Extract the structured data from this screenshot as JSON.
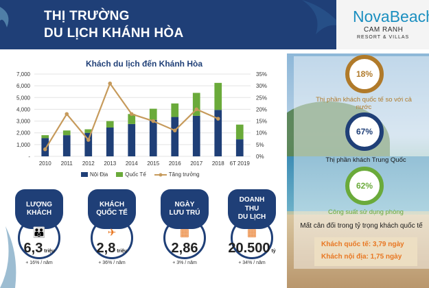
{
  "header": {
    "title_line1": "THỊ TRƯỜNG",
    "title_line2": "DU LỊCH KHÁNH HÒA",
    "logo_main": "NovaBeach",
    "logo_sub1": "CAM RANH",
    "logo_sub2": "RESORT & VILLAS"
  },
  "chart_data": {
    "type": "bar",
    "title": "Khách du lịch đến Khánh Hòa",
    "categories": [
      "2010",
      "2011",
      "2012",
      "2013",
      "2014",
      "2015",
      "2016",
      "2017",
      "2018",
      "6T 2019"
    ],
    "stacked": true,
    "series": [
      {
        "name": "Nội Địa",
        "type": "bar",
        "axis": "left",
        "color": "#1f3f77",
        "values": [
          1550,
          1800,
          2000,
          2450,
          2750,
          3100,
          3350,
          3450,
          3950,
          1450
        ]
      },
      {
        "name": "Quốc Tế",
        "type": "bar",
        "axis": "left",
        "color": "#6aaa3a",
        "values": [
          250,
          400,
          300,
          550,
          850,
          950,
          1150,
          1950,
          2300,
          1250
        ]
      },
      {
        "name": "Tăng trưởng",
        "type": "line",
        "axis": "right",
        "color": "#c69a5b",
        "values": [
          3,
          18,
          7,
          31,
          18,
          15,
          11,
          20,
          16,
          null
        ]
      }
    ],
    "y_left": {
      "min": 0,
      "max": 7000,
      "ticks": [
        "-",
        "1,000",
        "2,000",
        "3,000",
        "4,000",
        "5,000",
        "6,000",
        "7,000"
      ]
    },
    "y_right": {
      "min": 0,
      "max": 35,
      "ticks": [
        "0%",
        "5%",
        "10%",
        "15%",
        "20%",
        "25%",
        "30%",
        "35%"
      ]
    },
    "grid": true,
    "legend_position": "bottom"
  },
  "stats": [
    {
      "label1": "LƯỢNG",
      "label2": "KHÁCH",
      "icon": "family-icon",
      "glyph": "👪",
      "value": "6,3",
      "unit": "triệu",
      "growth": "+ 16% / năm"
    },
    {
      "label1": "KHÁCH",
      "label2": "QUỐC TẾ",
      "icon": "airplane-icon",
      "glyph": "✈",
      "value": "2,8",
      "unit": "triệu",
      "growth": "+ 36% / năm"
    },
    {
      "label1": "NGÀY",
      "label2": "LƯU TRÚ",
      "icon": "hotel-icon",
      "glyph": "▦",
      "value": "2,86",
      "unit": "",
      "growth": "+ 3% / năm"
    },
    {
      "label1": "DOANH THU",
      "label2": "DU LỊCH",
      "icon": "hotel-revenue-icon",
      "glyph": "▦",
      "value": "20.500",
      "unit": "tỷ",
      "growth": "+ 34% / năm"
    }
  ],
  "right_panel": {
    "rings": [
      {
        "value": "18%",
        "label": "Thị phần khách quốc tế so với cả nước",
        "color": "#b07a2a",
        "label_color": "#b07a2a"
      },
      {
        "value": "67%",
        "label": "Thị phần khách Trung Quốc",
        "color": "#1f3f77",
        "label_color": "#1a1a1a"
      },
      {
        "value": "62%",
        "label": "Công suất sử dụng phòng",
        "color": "#6aaa3a",
        "label_color": "#6aaa3a"
      }
    ],
    "imbalance_text": "Mất cân đối trong tỷ trọng khách quốc tế",
    "stay_intl": "Khách quốc tế: 3,79 ngày",
    "stay_dom": "Khách nội địa: 1,75 ngày"
  }
}
